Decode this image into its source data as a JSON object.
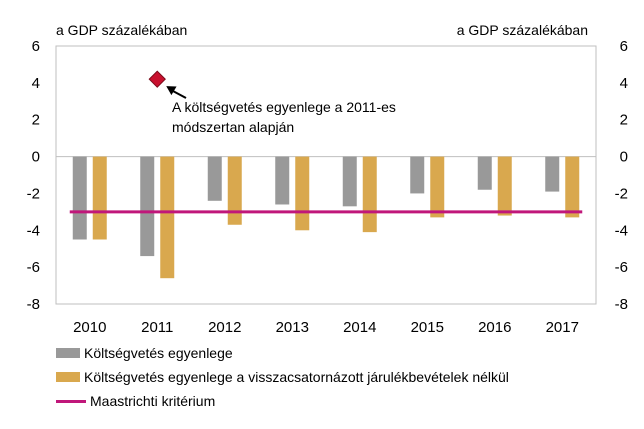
{
  "chart_data": {
    "type": "bar",
    "unit_label_left": "a GDP százalékában",
    "unit_label_right": "a GDP százalékában",
    "categories": [
      "2010",
      "2011",
      "2012",
      "2013",
      "2014",
      "2015",
      "2016",
      "2017"
    ],
    "series": [
      {
        "name": "Költségvetés egyenlege",
        "color": "#999999",
        "values": [
          -4.5,
          -5.4,
          -2.4,
          -2.6,
          -2.7,
          -2.0,
          -1.8,
          -1.9
        ]
      },
      {
        "name": "Költségvetés egyenlege a visszacsatornázott járulékbevételek nélkül",
        "color": "#d9a84e",
        "values": [
          -4.5,
          -6.6,
          -3.7,
          -4.0,
          -4.1,
          -3.3,
          -3.2,
          -3.3
        ]
      }
    ],
    "reference_line": {
      "name": "Maastrichti kritérium",
      "value": -3,
      "color": "#c0177a"
    },
    "marker": {
      "category": "2011",
      "value": 4.2,
      "color": "#c8102e"
    },
    "annotation": {
      "line1": "A költségvetés egyenlege a 2011-es",
      "line2": "módszertan alapján"
    },
    "yticks": [
      "6",
      "4",
      "2",
      "0",
      "-2",
      "-4",
      "-6",
      "-8"
    ],
    "ylim": [
      -8,
      6
    ],
    "grid": false,
    "legend_position": "bottom"
  }
}
